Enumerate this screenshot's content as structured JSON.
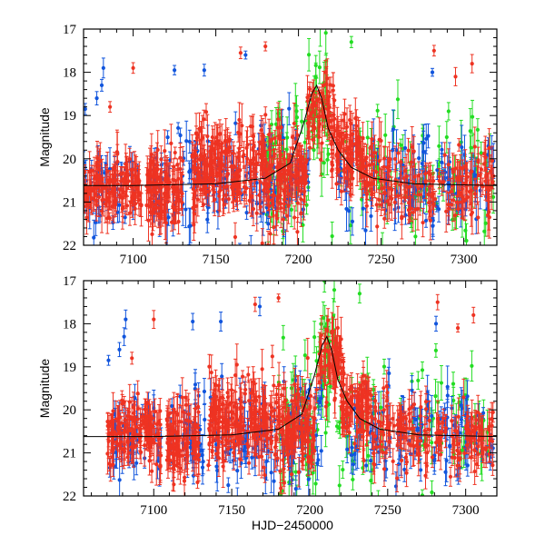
{
  "chart_data": {
    "type": "scatter",
    "colors": {
      "red": "#ee3322",
      "blue": "#1155dd",
      "green": "#22dd22",
      "model": "#000000",
      "frame": "#000000"
    },
    "series": [
      {
        "name": "red",
        "color": "#ee3322"
      },
      {
        "name": "blue",
        "color": "#1155dd"
      },
      {
        "name": "green",
        "color": "#22dd22"
      }
    ],
    "xlabel": "HJD−2450000",
    "ylabel": "Magnitude",
    "panels": [
      {
        "id": "top",
        "xlim": [
          7070,
          7320
        ],
        "ylim": [
          22,
          17
        ],
        "xticks": [
          7100,
          7150,
          7200,
          7250,
          7300
        ],
        "yticks": [
          17,
          18,
          19,
          20,
          21,
          22
        ],
        "show_xlabel": false,
        "seed": 11
      },
      {
        "id": "bottom",
        "xlim": [
          7055,
          7320
        ],
        "ylim": [
          22,
          17
        ],
        "xticks": [
          7100,
          7150,
          7200,
          7250,
          7300
        ],
        "yticks": [
          17,
          18,
          19,
          20,
          21,
          22
        ],
        "show_xlabel": true,
        "seed": 29
      }
    ],
    "model_curve": [
      [
        7055,
        20.62
      ],
      [
        7100,
        20.62
      ],
      [
        7150,
        20.58
      ],
      [
        7180,
        20.45
      ],
      [
        7195,
        20.1
      ],
      [
        7203,
        19.2
      ],
      [
        7208,
        18.5
      ],
      [
        7211,
        18.3
      ],
      [
        7214,
        18.6
      ],
      [
        7218,
        19.3
      ],
      [
        7224,
        19.8
      ],
      [
        7232,
        20.2
      ],
      [
        7245,
        20.45
      ],
      [
        7270,
        20.58
      ],
      [
        7320,
        20.62
      ]
    ],
    "clusters": [
      {
        "series": "red",
        "x": [
          7070,
          7105
        ],
        "y": 20.6,
        "sd": 0.38,
        "n": 130
      },
      {
        "series": "red",
        "x": [
          7108,
          7130
        ],
        "y": 20.7,
        "sd": 0.45,
        "n": 110
      },
      {
        "series": "red",
        "x": [
          7135,
          7180
        ],
        "y": 20.2,
        "sd": 0.5,
        "n": 210
      },
      {
        "series": "red",
        "x": [
          7180,
          7205
        ],
        "y": 20.4,
        "sd": 0.55,
        "n": 120
      },
      {
        "series": "red",
        "x": [
          7205,
          7222
        ],
        "y": 18.9,
        "sd": 0.45,
        "n": 70
      },
      {
        "series": "red",
        "x": [
          7220,
          7240
        ],
        "y": 19.9,
        "sd": 0.4,
        "n": 90
      },
      {
        "series": "red",
        "x": [
          7240,
          7262
        ],
        "y": 20.5,
        "sd": 0.4,
        "n": 60
      },
      {
        "series": "red",
        "x": [
          7262,
          7318
        ],
        "y": 20.6,
        "sd": 0.4,
        "n": 120
      },
      {
        "series": "blue",
        "x": [
          7070,
          7105
        ],
        "y": 20.7,
        "sd": 0.45,
        "n": 45
      },
      {
        "series": "blue",
        "x": [
          7110,
          7180
        ],
        "y": 20.6,
        "sd": 0.6,
        "n": 110
      },
      {
        "series": "blue",
        "x": [
          7180,
          7208
        ],
        "y": 20.5,
        "sd": 0.6,
        "n": 45
      },
      {
        "series": "blue",
        "x": [
          7222,
          7318
        ],
        "y": 20.6,
        "sd": 0.55,
        "n": 120
      },
      {
        "series": "green",
        "x": [
          7180,
          7206
        ],
        "y": 20.4,
        "sd": 0.8,
        "n": 60
      },
      {
        "series": "green",
        "x": [
          7206,
          7218
        ],
        "y": 18.8,
        "sd": 0.8,
        "n": 30
      },
      {
        "series": "green",
        "x": [
          7218,
          7318
        ],
        "y": 20.4,
        "sd": 0.7,
        "n": 90
      }
    ],
    "outliers": [
      {
        "series": "blue",
        "x": 7071,
        "y": 18.85
      },
      {
        "series": "blue",
        "x": 7078,
        "y": 18.6
      },
      {
        "series": "blue",
        "x": 7081,
        "y": 18.3
      },
      {
        "series": "blue",
        "x": 7082,
        "y": 17.9
      },
      {
        "series": "red",
        "x": 7086,
        "y": 18.8
      },
      {
        "series": "red",
        "x": 7100,
        "y": 17.9
      },
      {
        "series": "blue",
        "x": 7125,
        "y": 17.95
      },
      {
        "series": "blue",
        "x": 7143,
        "y": 17.95
      },
      {
        "series": "red",
        "x": 7165,
        "y": 17.55
      },
      {
        "series": "blue",
        "x": 7168,
        "y": 17.6
      },
      {
        "series": "red",
        "x": 7282,
        "y": 17.5
      },
      {
        "series": "blue",
        "x": 7281,
        "y": 18.0
      },
      {
        "series": "red",
        "x": 7295,
        "y": 18.1
      },
      {
        "series": "red",
        "x": 7305,
        "y": 17.8
      },
      {
        "series": "red",
        "x": 7180,
        "y": 17.4
      },
      {
        "series": "green",
        "x": 7232,
        "y": 17.3
      }
    ]
  }
}
